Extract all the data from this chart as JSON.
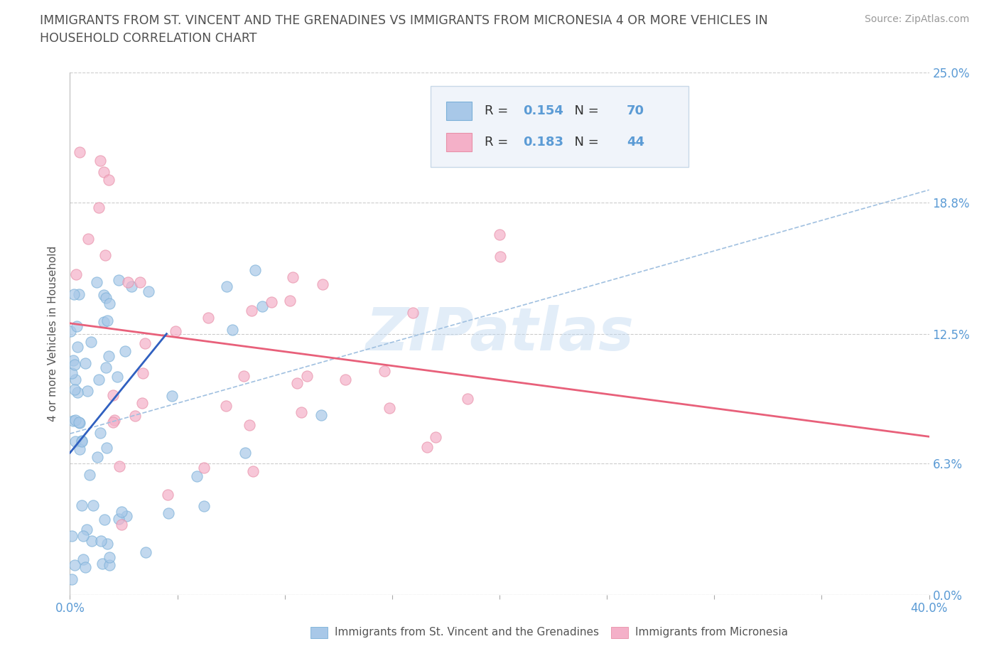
{
  "title_line1": "IMMIGRANTS FROM ST. VINCENT AND THE GRENADINES VS IMMIGRANTS FROM MICRONESIA 4 OR MORE VEHICLES IN",
  "title_line2": "HOUSEHOLD CORRELATION CHART",
  "source": "Source: ZipAtlas.com",
  "ylabel": "4 or more Vehicles in Household",
  "xlim": [
    0.0,
    0.4
  ],
  "ylim": [
    0.0,
    0.25
  ],
  "ytick_vals": [
    0.0,
    0.063,
    0.125,
    0.188,
    0.25
  ],
  "ytick_labels": [
    "0.0%",
    "6.3%",
    "12.5%",
    "18.8%",
    "25.0%"
  ],
  "xtick_vals": [
    0.0,
    0.05,
    0.1,
    0.15,
    0.2,
    0.25,
    0.3,
    0.35,
    0.4
  ],
  "xtick_bottom_labels": [
    "0.0%",
    "",
    "",
    "",
    "",
    "",
    "",
    "",
    "40.0%"
  ],
  "watermark": "ZIPatlas",
  "series1_color": "#a8c8e8",
  "series1_edge_color": "#7ab0d8",
  "series2_color": "#f4b0c8",
  "series2_edge_color": "#e890a8",
  "series1_line_color": "#3060c0",
  "series2_line_color": "#e8607a",
  "dashed_line_color": "#a0c0e0",
  "series1_label": "Immigrants from St. Vincent and the Grenadines",
  "series2_label": "Immigrants from Micronesia",
  "R1": "0.154",
  "N1": "70",
  "R2": "0.183",
  "N2": "44",
  "blue_text_color": "#5b9bd5",
  "title_color": "#505050",
  "background_color": "#ffffff",
  "grid_color": "#cccccc",
  "legend_box_color": "#f0f4fa",
  "legend_edge_color": "#c8d8e8"
}
